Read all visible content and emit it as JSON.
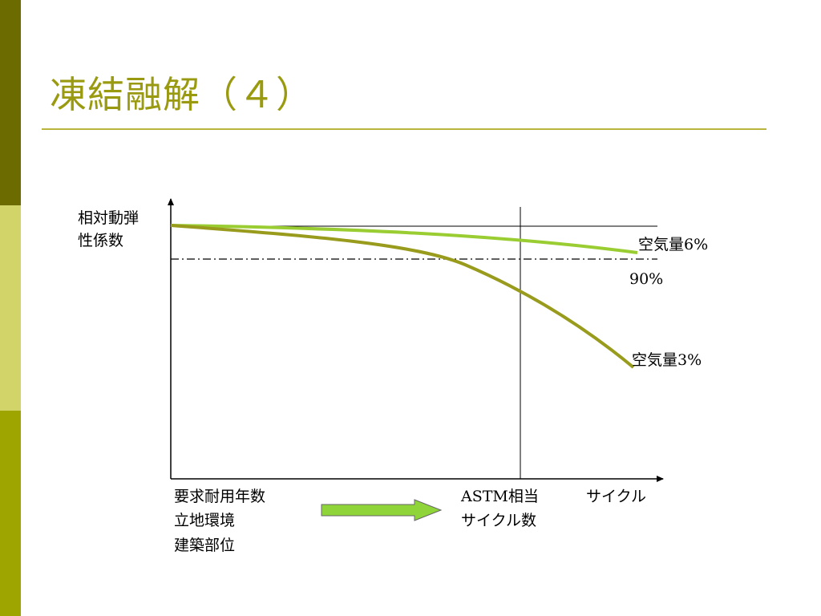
{
  "slide": {
    "title": "凍結融解（４）"
  },
  "diagram": {
    "y_axis_label_line1": "相対動弾",
    "y_axis_label_line2": "性係数",
    "threshold_label": "90%",
    "curve_high_label_prefix": "空気量",
    "curve_high_label_value": "6%",
    "curve_low_label_prefix": "空気量",
    "curve_low_label_value": "3%",
    "x_axis_label": "サイクル",
    "left_note_lines": [
      "要求耐用年数",
      "立地環境",
      "建築部位"
    ],
    "astm_line1_latin": "ASTM",
    "astm_line1_jp": "相当",
    "astm_line2": "サイクル数",
    "colors": {
      "curve_high": "#9acd32",
      "curve_low": "#999b1c",
      "arrow_fill": "#8fd53a"
    }
  }
}
